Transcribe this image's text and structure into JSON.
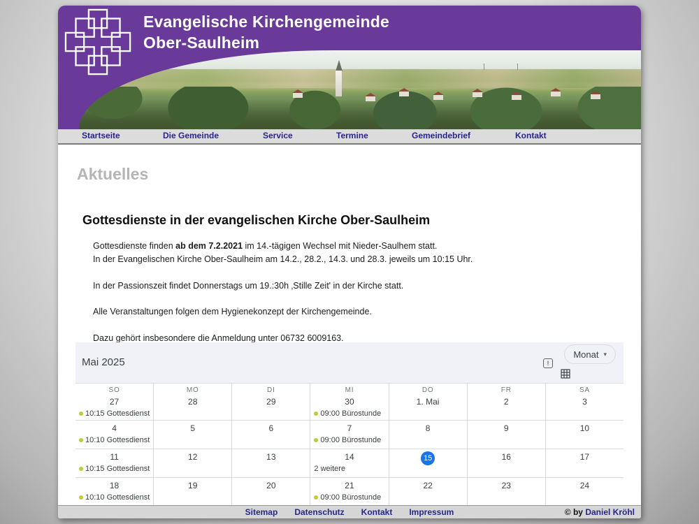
{
  "header": {
    "title_line1": "Evangelische Kirchengemeinde",
    "title_line2": "Ober-Saulheim"
  },
  "nav": {
    "items": [
      {
        "label": "Startseite"
      },
      {
        "label": "Die Gemeinde"
      },
      {
        "label": "Service"
      },
      {
        "label": "Termine"
      },
      {
        "label": "Gemeindebrief"
      },
      {
        "label": "Kontakt"
      }
    ]
  },
  "page": {
    "section_title": "Aktuelles",
    "article_title": "Gottesdienste in der evangelischen Kirche Ober-Saulheim",
    "p1a": "Gottesdienste finden ",
    "p1b": "ab dem 7.2.2021",
    "p1c": " im 14.-tägigen Wechsel mit Nieder-Saulhem statt.",
    "p1d": "In der Evangelischen Kirche Ober-Saulheim am 14.2., 28.2., 14.3. und 28.3. jeweils um 10:15 Uhr.",
    "p2": "In der Passionszeit findet Donnerstags um 19.:30h ‚Stille Zeit' in der Kirche statt.",
    "p3": "Alle Veranstaltungen folgen dem Hygienekonzept der Kirchengemeinde.",
    "p4": "Dazu gehört insbesondere die Anmeldung unter 06732 6009163."
  },
  "calendar": {
    "month_label": "Mai 2025",
    "view_selector": "Monat",
    "caret": "▾",
    "feedback_glyph": "!",
    "weekdays": [
      "SO",
      "MO",
      "DI",
      "MI",
      "DO",
      "FR",
      "SA"
    ],
    "weeks": [
      [
        {
          "date": "27",
          "event": {
            "dot": true,
            "text": "10:15 Gottesdienst"
          }
        },
        {
          "date": "28"
        },
        {
          "date": "29"
        },
        {
          "date": "30",
          "event": {
            "dot": true,
            "text": "09:00 Bürostunde"
          }
        },
        {
          "date": "1. Mai"
        },
        {
          "date": "2"
        },
        {
          "date": "3"
        }
      ],
      [
        {
          "date": "4",
          "event": {
            "dot": true,
            "text": "10:10 Gottesdienst"
          }
        },
        {
          "date": "5"
        },
        {
          "date": "6"
        },
        {
          "date": "7",
          "event": {
            "dot": true,
            "text": "09:00 Bürostunde"
          }
        },
        {
          "date": "8"
        },
        {
          "date": "9"
        },
        {
          "date": "10"
        }
      ],
      [
        {
          "date": "11",
          "event": {
            "dot": true,
            "text": "10:15 Gottesdienst"
          }
        },
        {
          "date": "12"
        },
        {
          "date": "13"
        },
        {
          "date": "14",
          "event": {
            "dot": false,
            "text": "2 weitere"
          }
        },
        {
          "date": "15",
          "today": true
        },
        {
          "date": "16"
        },
        {
          "date": "17"
        }
      ],
      [
        {
          "date": "18",
          "event": {
            "dot": true,
            "text": "10:10 Gottesdienst"
          }
        },
        {
          "date": "19"
        },
        {
          "date": "20"
        },
        {
          "date": "21",
          "event": {
            "dot": true,
            "text": "09:00 Bürostunde"
          }
        },
        {
          "date": "22"
        },
        {
          "date": "23"
        },
        {
          "date": "24"
        }
      ]
    ]
  },
  "footer": {
    "links": [
      {
        "label": "Sitemap"
      },
      {
        "label": "Datenschutz"
      },
      {
        "label": "Kontakt"
      },
      {
        "label": "Impressum"
      }
    ],
    "copyright_prefix": "© by ",
    "copyright_name": "Daniel Kröhl"
  },
  "colors": {
    "brand_purple": "#6a3a9a",
    "nav_link": "#26268a",
    "today_blue": "#1a73e8",
    "event_dot": "#c0ca33"
  }
}
